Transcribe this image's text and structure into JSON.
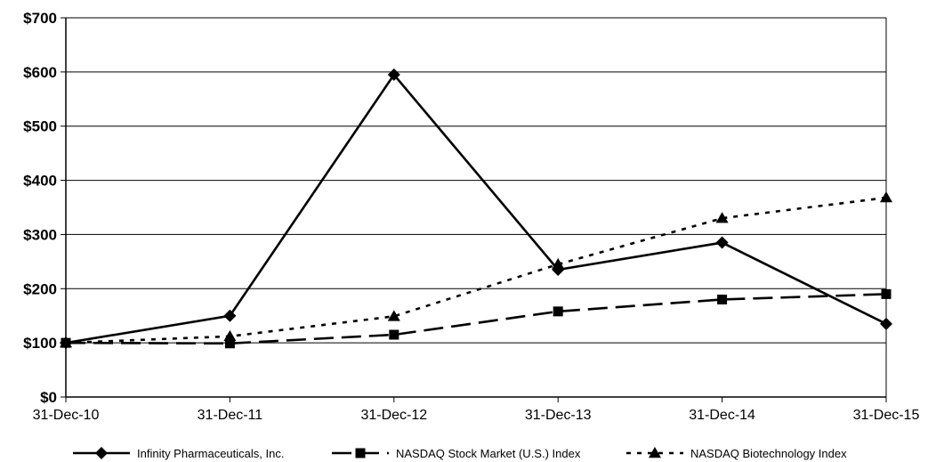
{
  "chart_data": {
    "type": "line",
    "categories": [
      "31-Dec-10",
      "31-Dec-11",
      "31-Dec-12",
      "31-Dec-13",
      "31-Dec-14",
      "31-Dec-15"
    ],
    "y_ticks": [
      "$0",
      "$100",
      "$200",
      "$300",
      "$400",
      "$500",
      "$600",
      "$700"
    ],
    "ylim": [
      0,
      700
    ],
    "grid": true,
    "legend_position": "bottom",
    "series": [
      {
        "name": "Infinity Pharmaceuticals, Inc.",
        "values": [
          100,
          150,
          595,
          235,
          285,
          135
        ],
        "style": "solid",
        "marker": "diamond"
      },
      {
        "name": "NASDAQ Stock Market (U.S.) Index",
        "values": [
          100,
          99,
          115,
          158,
          180,
          190
        ],
        "style": "long-dash",
        "marker": "square"
      },
      {
        "name": "NASDAQ Biotechnology Index",
        "values": [
          100,
          112,
          149,
          245,
          330,
          368
        ],
        "style": "dotted",
        "marker": "triangle"
      }
    ],
    "colors": {
      "line": "#000000",
      "grid": "#000000",
      "background": "#ffffff"
    }
  }
}
